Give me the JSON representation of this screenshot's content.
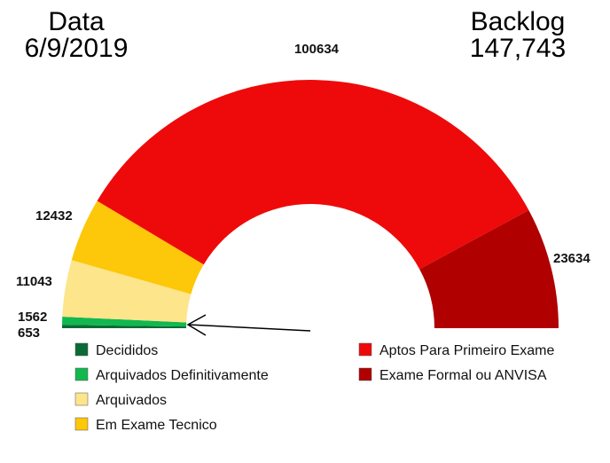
{
  "header": {
    "date_label": "Data",
    "date_value": "6/9/2019",
    "backlog_label": "Backlog",
    "backlog_value": "147,743"
  },
  "chart_data": {
    "type": "pie",
    "variant": "half-donut",
    "categories": [
      "Decididos",
      "Arquivados Definitivamente",
      "Arquivados",
      "Em Exame Tecnico",
      "Aptos Para Primeiro Exame",
      "Exame Formal ou ANVISA"
    ],
    "values": [
      653,
      1562,
      11043,
      12432,
      100634,
      23634
    ],
    "colors": [
      "#0a6b35",
      "#12b84f",
      "#fde58c",
      "#fdc70a",
      "#ee0a0a",
      "#b00000"
    ],
    "legend_position": "bottom",
    "annotation": "arrow pointing to Decididos / Arquivados Definitivamente slices"
  }
}
